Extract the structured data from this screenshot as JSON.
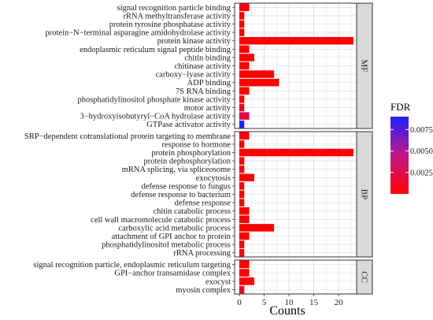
{
  "chart_data": {
    "type": "bar",
    "orientation": "horizontal",
    "xlabel": "Counts",
    "ylabel": "",
    "xlim": [
      0,
      24
    ],
    "xticks": [
      0,
      5,
      10,
      15,
      20
    ],
    "grid": true,
    "color_scale": {
      "title": "FDR",
      "range": [
        0.0,
        0.009
      ],
      "ticks": [
        0.0025,
        0.005,
        0.0075
      ],
      "tick_labels": [
        "0.0025",
        "0.0050",
        "0.0075"
      ],
      "low_color": "#ff0000",
      "high_color": "#2020ff"
    },
    "legend_position": "right",
    "panels": [
      {
        "name": "MF",
        "terms": [
          {
            "label": "signal recognition particle binding",
            "value": 2,
            "fdr": 0.0001
          },
          {
            "label": "rRNA methyltransferase activity",
            "value": 1,
            "fdr": 0.0001
          },
          {
            "label": "protein tyrosine phosphatase activity",
            "value": 1,
            "fdr": 0.0001
          },
          {
            "label": "protein−N−terminal asparagine amidohydrolase activity",
            "value": 1,
            "fdr": 0.0001
          },
          {
            "label": "protein kinase activity",
            "value": 23,
            "fdr": 0.0001
          },
          {
            "label": "endoplasmic reticulum signal peptide binding",
            "value": 2,
            "fdr": 0.0001
          },
          {
            "label": "chitin binding",
            "value": 3,
            "fdr": 0.0001
          },
          {
            "label": "chitinase activity",
            "value": 2,
            "fdr": 0.0001
          },
          {
            "label": "carboxy−lyase activity",
            "value": 7,
            "fdr": 0.0001
          },
          {
            "label": "ADP binding",
            "value": 8,
            "fdr": 0.0001
          },
          {
            "label": "7S RNA binding",
            "value": 2,
            "fdr": 0.0001
          },
          {
            "label": "phosphatidylinositol phosphate kinase activity",
            "value": 1,
            "fdr": 0.0002
          },
          {
            "label": "motor activity",
            "value": 1,
            "fdr": 0.0012
          },
          {
            "label": "3−hydroxyisobutyryl−CoA hydrolase activity",
            "value": 2,
            "fdr": 0.0025
          },
          {
            "label": "GTPase activator activity",
            "value": 1,
            "fdr": 0.0088
          }
        ]
      },
      {
        "name": "BP",
        "terms": [
          {
            "label": "SRP−dependent cotranslational protein targeting to membrane",
            "value": 2,
            "fdr": 0.0001
          },
          {
            "label": "response to hormone",
            "value": 1,
            "fdr": 0.0001
          },
          {
            "label": "protein phosphorylation",
            "value": 23,
            "fdr": 0.0001
          },
          {
            "label": "protein dephosphorylation",
            "value": 1,
            "fdr": 0.0001
          },
          {
            "label": "mRNA splicing, via spliceosome",
            "value": 1,
            "fdr": 0.0001
          },
          {
            "label": "exocytosis",
            "value": 3,
            "fdr": 0.0001
          },
          {
            "label": "defense response to fungus",
            "value": 1,
            "fdr": 0.0001
          },
          {
            "label": "defense response to bacterium",
            "value": 1,
            "fdr": 0.0001
          },
          {
            "label": "defense response",
            "value": 1,
            "fdr": 0.0001
          },
          {
            "label": "chitin catabolic process",
            "value": 2,
            "fdr": 0.0001
          },
          {
            "label": "cell wall macromolecule catabolic process",
            "value": 2,
            "fdr": 0.0001
          },
          {
            "label": "carboxylic acid metabolic process",
            "value": 7,
            "fdr": 0.0001
          },
          {
            "label": "attachment of GPI anchor to protein",
            "value": 2,
            "fdr": 0.0001
          },
          {
            "label": "phosphatidylinositol metabolic process",
            "value": 1,
            "fdr": 0.0002
          },
          {
            "label": "rRNA processing",
            "value": 1,
            "fdr": 0.0005
          }
        ]
      },
      {
        "name": "CC",
        "terms": [
          {
            "label": "signal recognition particle, endoplasmic reticulum targeting",
            "value": 2,
            "fdr": 0.0001
          },
          {
            "label": "GPI−anchor transamidase complex",
            "value": 2,
            "fdr": 0.0001
          },
          {
            "label": "exocyst",
            "value": 3,
            "fdr": 0.0001
          },
          {
            "label": "myosin complex",
            "value": 1,
            "fdr": 0.0012
          }
        ]
      }
    ]
  }
}
